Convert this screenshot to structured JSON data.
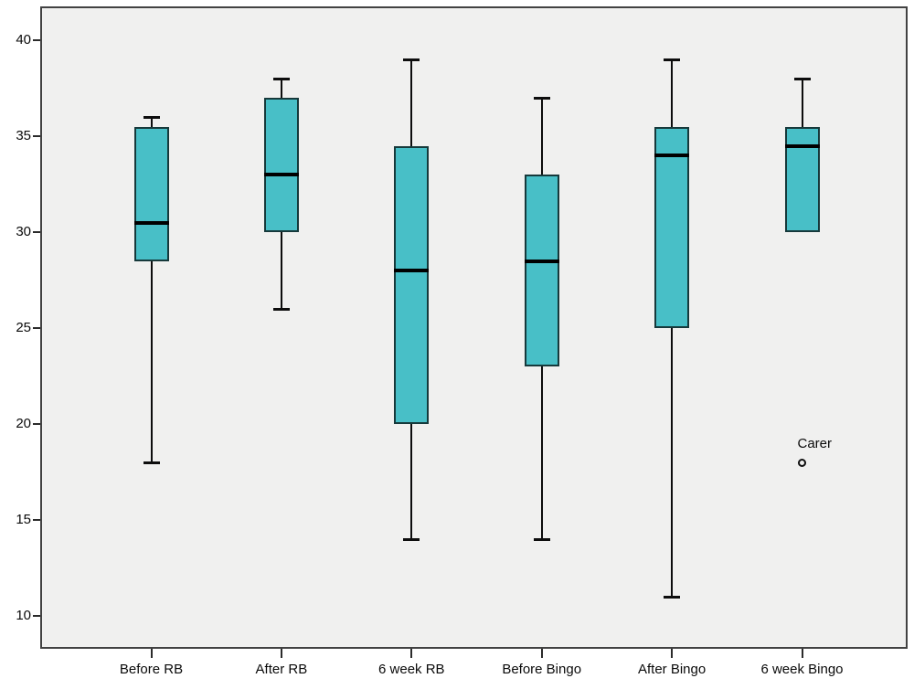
{
  "chart_data": {
    "type": "boxplot",
    "title": "",
    "categories": [
      "Before RB",
      "After RB",
      "6 week RB",
      "Before Bingo",
      "After Bingo",
      "6 week Bingo"
    ],
    "y_axis": {
      "min": 10,
      "max": 40,
      "ticks": [
        40,
        35,
        30,
        25,
        20,
        15,
        10
      ],
      "tick_labels": [
        "40",
        "35",
        "30",
        "25",
        "20",
        "15",
        "10"
      ]
    },
    "grid": "off",
    "legend": "none",
    "boxes": [
      {
        "category": "Before RB",
        "whisker_low": 18,
        "q1": 28.5,
        "median": 30.5,
        "q3": 35.5,
        "whisker_high": 36,
        "outliers": []
      },
      {
        "category": "After RB",
        "whisker_low": 26,
        "q1": 30,
        "median": 33,
        "q3": 37,
        "whisker_high": 38,
        "outliers": []
      },
      {
        "category": "6 week RB",
        "whisker_low": 14,
        "q1": 20,
        "median": 28,
        "q3": 34.5,
        "whisker_high": 39,
        "outliers": []
      },
      {
        "category": "Before Bingo",
        "whisker_low": 14,
        "q1": 23,
        "median": 28.5,
        "q3": 33,
        "whisker_high": 37,
        "outliers": []
      },
      {
        "category": "After Bingo",
        "whisker_low": 11,
        "q1": 25,
        "median": 34,
        "q3": 35.5,
        "whisker_high": 39,
        "outliers": []
      },
      {
        "category": "6 week Bingo",
        "whisker_low": 30,
        "q1": 30,
        "median": 34.5,
        "q3": 35.5,
        "whisker_high": 38,
        "outliers": [
          {
            "value": 18,
            "label": "Carer"
          }
        ]
      }
    ],
    "colors": {
      "box_fill": "#48BFC7",
      "box_border": "#16393B",
      "median": "#000000",
      "whisker": "#0d0d0d",
      "plot_bg": "#F0F0EF",
      "frame_border": "#424242"
    }
  }
}
